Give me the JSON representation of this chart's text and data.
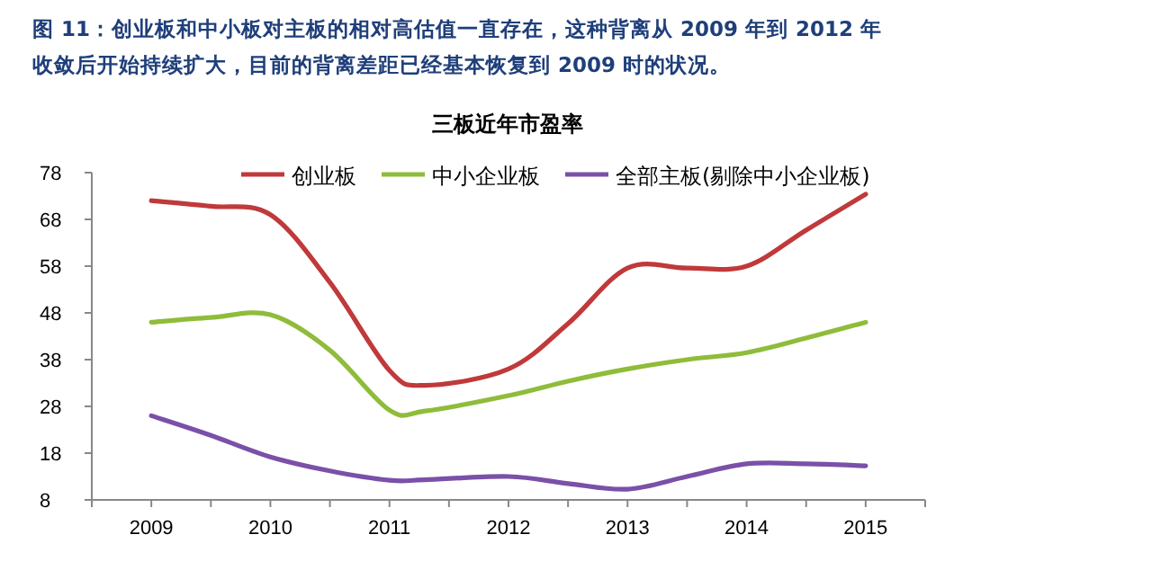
{
  "chart_data": {
    "type": "line",
    "title": "图 11：创业板和中小板对主板的相对高估值一直存在，这种背离从 2009 年到 2012 年收敛后开始持续扩大，目前的背离差距已经基本恢复到 2009 时的状况。",
    "subtitle": "三板近年市盈率",
    "x": [
      2009,
      2009.5,
      2010,
      2010.5,
      2011,
      2011.3,
      2012,
      2012.5,
      2013,
      2013.5,
      2014,
      2014.5,
      2015
    ],
    "series": [
      {
        "name": "创业板",
        "color": "#c0393b",
        "values": [
          72,
          70.8,
          69,
          54.5,
          35.7,
          32.5,
          36,
          45.7,
          57.6,
          57.6,
          58,
          65.7,
          73.4
        ]
      },
      {
        "name": "中小企业板",
        "color": "#8fbc3a",
        "values": [
          46,
          47,
          47.6,
          40,
          27.2,
          27,
          30.3,
          33.4,
          36,
          38,
          39.5,
          42.6,
          46
        ]
      },
      {
        "name": "全部主板(剔除中小企业板)",
        "color": "#7a50a8",
        "values": [
          26,
          21.8,
          17.2,
          14.2,
          12.2,
          12.3,
          13,
          11.5,
          10.3,
          13,
          15.7,
          15.7,
          15.3
        ]
      }
    ],
    "xlim": [
      2008.5,
      2015.5
    ],
    "xticks": [
      {
        "value": 2008.5,
        "label": null
      },
      2009,
      {
        "value": 2009.5,
        "label": null
      },
      2010,
      {
        "value": 2010.5,
        "label": null
      },
      2011,
      {
        "value": 2011.5,
        "label": null
      },
      2012,
      {
        "value": 2012.5,
        "label": null
      },
      2013,
      {
        "value": 2013.5,
        "label": null
      },
      2014,
      {
        "value": 2014.5,
        "label": null
      },
      2015,
      {
        "value": 2015.5,
        "label": null
      }
    ],
    "ylim": [
      8,
      78
    ],
    "yticks": [
      8,
      18,
      28,
      38,
      48,
      58,
      68,
      78
    ],
    "legend": "top",
    "grid": false,
    "marker": "none",
    "line_style": "solid"
  }
}
